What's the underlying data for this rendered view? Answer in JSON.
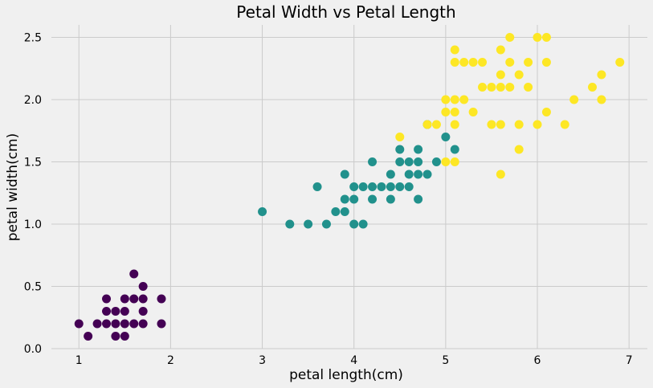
{
  "chart_data": {
    "type": "scatter",
    "title": "Petal Width vs Petal Length",
    "xlabel": "petal length(cm)",
    "ylabel": "petal width(cm)",
    "xlim": [
      0.7,
      7.2
    ],
    "ylim": [
      0.0,
      2.6
    ],
    "xticks": [
      1,
      2,
      3,
      4,
      5,
      6,
      7
    ],
    "xtick_labels": [
      "1",
      "2",
      "3",
      "4",
      "5",
      "6",
      "7"
    ],
    "yticks": [
      0.0,
      0.5,
      1.0,
      1.5,
      2.0,
      2.5
    ],
    "ytick_labels": [
      "0.0",
      "0.5",
      "1.0",
      "1.5",
      "2.0",
      "2.5"
    ],
    "grid": true,
    "series": [
      {
        "color": "#440154",
        "points": [
          [
            1.0,
            0.2
          ],
          [
            1.1,
            0.1
          ],
          [
            1.2,
            0.2
          ],
          [
            1.3,
            0.2
          ],
          [
            1.3,
            0.3
          ],
          [
            1.3,
            0.4
          ],
          [
            1.4,
            0.1
          ],
          [
            1.4,
            0.2
          ],
          [
            1.4,
            0.3
          ],
          [
            1.5,
            0.1
          ],
          [
            1.5,
            0.2
          ],
          [
            1.5,
            0.3
          ],
          [
            1.5,
            0.4
          ],
          [
            1.6,
            0.2
          ],
          [
            1.6,
            0.4
          ],
          [
            1.6,
            0.6
          ],
          [
            1.7,
            0.2
          ],
          [
            1.7,
            0.3
          ],
          [
            1.7,
            0.4
          ],
          [
            1.7,
            0.5
          ],
          [
            1.9,
            0.2
          ],
          [
            1.9,
            0.4
          ]
        ]
      },
      {
        "color": "#21918c",
        "points": [
          [
            3.0,
            1.1
          ],
          [
            3.3,
            1.0
          ],
          [
            3.5,
            1.0
          ],
          [
            3.6,
            1.3
          ],
          [
            3.7,
            1.0
          ],
          [
            3.8,
            1.1
          ],
          [
            3.9,
            1.1
          ],
          [
            3.9,
            1.2
          ],
          [
            3.9,
            1.4
          ],
          [
            4.0,
            1.0
          ],
          [
            4.0,
            1.2
          ],
          [
            4.0,
            1.3
          ],
          [
            4.1,
            1.0
          ],
          [
            4.1,
            1.3
          ],
          [
            4.2,
            1.2
          ],
          [
            4.2,
            1.3
          ],
          [
            4.2,
            1.5
          ],
          [
            4.3,
            1.3
          ],
          [
            4.4,
            1.2
          ],
          [
            4.4,
            1.3
          ],
          [
            4.4,
            1.4
          ],
          [
            4.5,
            1.3
          ],
          [
            4.5,
            1.5
          ],
          [
            4.5,
            1.6
          ],
          [
            4.6,
            1.3
          ],
          [
            4.6,
            1.4
          ],
          [
            4.6,
            1.5
          ],
          [
            4.7,
            1.2
          ],
          [
            4.7,
            1.4
          ],
          [
            4.7,
            1.5
          ],
          [
            4.7,
            1.6
          ],
          [
            4.8,
            1.4
          ],
          [
            4.8,
            1.8
          ],
          [
            4.9,
            1.5
          ],
          [
            5.0,
            1.7
          ],
          [
            5.1,
            1.6
          ]
        ]
      },
      {
        "color": "#fde725",
        "points": [
          [
            4.5,
            1.7
          ],
          [
            4.8,
            1.8
          ],
          [
            4.9,
            1.8
          ],
          [
            5.0,
            1.5
          ],
          [
            5.0,
            1.9
          ],
          [
            5.0,
            2.0
          ],
          [
            5.1,
            1.5
          ],
          [
            5.1,
            1.8
          ],
          [
            5.1,
            1.9
          ],
          [
            5.1,
            2.0
          ],
          [
            5.1,
            2.3
          ],
          [
            5.1,
            2.4
          ],
          [
            5.2,
            2.0
          ],
          [
            5.2,
            2.3
          ],
          [
            5.3,
            1.9
          ],
          [
            5.3,
            2.3
          ],
          [
            5.4,
            2.1
          ],
          [
            5.4,
            2.3
          ],
          [
            5.5,
            1.8
          ],
          [
            5.5,
            2.1
          ],
          [
            5.6,
            1.4
          ],
          [
            5.6,
            1.8
          ],
          [
            5.6,
            2.1
          ],
          [
            5.6,
            2.2
          ],
          [
            5.6,
            2.4
          ],
          [
            5.7,
            2.1
          ],
          [
            5.7,
            2.3
          ],
          [
            5.7,
            2.5
          ],
          [
            5.8,
            1.6
          ],
          [
            5.8,
            1.8
          ],
          [
            5.8,
            2.2
          ],
          [
            5.9,
            2.1
          ],
          [
            5.9,
            2.3
          ],
          [
            6.0,
            1.8
          ],
          [
            6.0,
            2.5
          ],
          [
            6.1,
            1.9
          ],
          [
            6.1,
            2.3
          ],
          [
            6.1,
            2.5
          ],
          [
            6.3,
            1.8
          ],
          [
            6.4,
            2.0
          ],
          [
            6.6,
            2.1
          ],
          [
            6.7,
            2.0
          ],
          [
            6.7,
            2.2
          ],
          [
            6.9,
            2.3
          ]
        ]
      }
    ]
  }
}
